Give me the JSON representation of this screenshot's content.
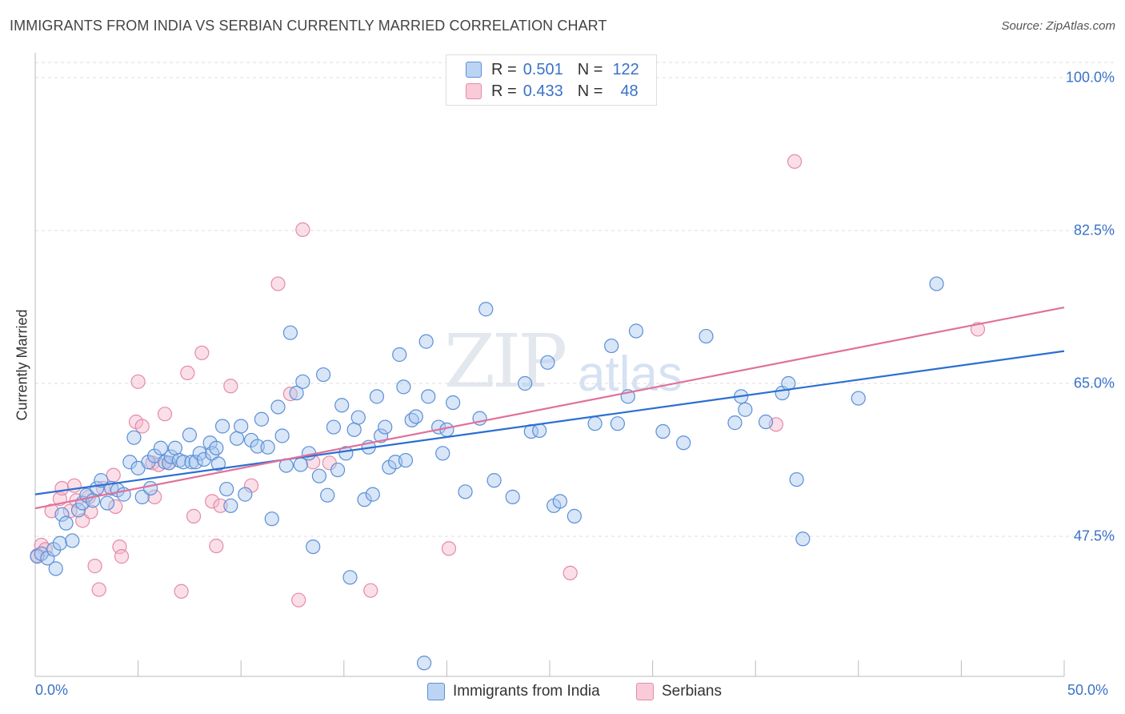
{
  "title": "IMMIGRANTS FROM INDIA VS SERBIAN CURRENTLY MARRIED CORRELATION CHART",
  "source": "Source: ZipAtlas.com",
  "watermark": {
    "zip": "ZIP",
    "atlas": "atlas"
  },
  "legend_top": {
    "rows": [
      {
        "r_label": "R =",
        "r_value": "0.501",
        "n_label": "N =",
        "n_value": "122"
      },
      {
        "r_label": "R =",
        "r_value": "0.433",
        "n_label": "N =",
        "n_value": "48"
      }
    ]
  },
  "legend_bottom": [
    "Immigrants from India",
    "Serbians"
  ],
  "colors": {
    "india_fill": "#a9c8f0",
    "india_stroke": "#5b8fd6",
    "india_line": "#2b6fd1",
    "serb_fill": "#f5b8cb",
    "serb_stroke": "#e58aa8",
    "serb_line": "#e0719a",
    "tick_text": "#3a72c8",
    "grid": "#dcdcdc"
  },
  "chart_data": {
    "type": "scatter",
    "title": "IMMIGRANTS FROM INDIA VS SERBIAN CURRENTLY MARRIED CORRELATION CHART",
    "xlabel": "",
    "ylabel": "Currently Married",
    "xlim": [
      0,
      50
    ],
    "ylim": [
      30,
      101.5
    ],
    "x_tick_labels": [
      "0.0%",
      "50.0%"
    ],
    "y_ticks": [
      47.5,
      65.0,
      82.5,
      100.0
    ],
    "y_tick_labels": [
      "47.5%",
      "65.0%",
      "82.5%",
      "100.0%"
    ],
    "grid": "horizontal dashed",
    "series": [
      {
        "name": "Immigrants from India",
        "R": 0.501,
        "N": 122,
        "trend": {
          "x": [
            0,
            50
          ],
          "y": [
            52.3,
            68.7
          ]
        },
        "points": [
          [
            0.1,
            45.2
          ],
          [
            0.3,
            45.5
          ],
          [
            0.6,
            45.0
          ],
          [
            0.9,
            46.0
          ],
          [
            1.0,
            43.8
          ],
          [
            1.2,
            46.7
          ],
          [
            1.3,
            50.0
          ],
          [
            1.5,
            49.0
          ],
          [
            1.8,
            47.0
          ],
          [
            2.1,
            50.5
          ],
          [
            2.3,
            51.3
          ],
          [
            2.5,
            52.2
          ],
          [
            2.8,
            51.6
          ],
          [
            3.0,
            53.0
          ],
          [
            3.2,
            53.9
          ],
          [
            3.5,
            51.3
          ],
          [
            3.7,
            53.0
          ],
          [
            4.0,
            52.8
          ],
          [
            4.3,
            52.3
          ],
          [
            4.6,
            56.0
          ],
          [
            4.8,
            58.8
          ],
          [
            5.0,
            55.3
          ],
          [
            5.2,
            52.0
          ],
          [
            5.5,
            56.0
          ],
          [
            5.6,
            53.0
          ],
          [
            5.8,
            56.7
          ],
          [
            6.1,
            57.6
          ],
          [
            6.3,
            56.0
          ],
          [
            6.5,
            55.9
          ],
          [
            6.6,
            56.6
          ],
          [
            6.8,
            57.6
          ],
          [
            7.0,
            56.2
          ],
          [
            7.2,
            56.0
          ],
          [
            7.5,
            59.1
          ],
          [
            7.6,
            56.0
          ],
          [
            7.8,
            56.0
          ],
          [
            8.0,
            57.0
          ],
          [
            8.2,
            56.3
          ],
          [
            8.5,
            58.2
          ],
          [
            8.6,
            57.0
          ],
          [
            8.8,
            57.6
          ],
          [
            8.9,
            55.8
          ],
          [
            9.1,
            60.1
          ],
          [
            9.3,
            52.9
          ],
          [
            9.5,
            51.0
          ],
          [
            9.8,
            58.7
          ],
          [
            10.0,
            60.1
          ],
          [
            10.2,
            52.3
          ],
          [
            10.5,
            58.5
          ],
          [
            10.8,
            57.8
          ],
          [
            11.0,
            60.9
          ],
          [
            11.3,
            57.7
          ],
          [
            11.5,
            49.5
          ],
          [
            11.8,
            62.3
          ],
          [
            12.0,
            59.0
          ],
          [
            12.2,
            55.6
          ],
          [
            12.4,
            70.8
          ],
          [
            12.7,
            63.9
          ],
          [
            12.9,
            55.7
          ],
          [
            13.0,
            65.2
          ],
          [
            13.3,
            57.0
          ],
          [
            13.5,
            46.3
          ],
          [
            13.8,
            54.4
          ],
          [
            14.0,
            66.0
          ],
          [
            14.2,
            52.2
          ],
          [
            14.5,
            60.0
          ],
          [
            14.7,
            55.1
          ],
          [
            14.9,
            62.5
          ],
          [
            15.1,
            57.0
          ],
          [
            15.3,
            42.8
          ],
          [
            15.5,
            59.7
          ],
          [
            15.7,
            61.1
          ],
          [
            16.0,
            51.7
          ],
          [
            16.2,
            57.7
          ],
          [
            16.4,
            52.3
          ],
          [
            16.6,
            63.5
          ],
          [
            16.8,
            59.0
          ],
          [
            17.0,
            60.0
          ],
          [
            17.2,
            55.4
          ],
          [
            17.5,
            56.0
          ],
          [
            17.7,
            68.3
          ],
          [
            17.9,
            64.6
          ],
          [
            18.0,
            56.2
          ],
          [
            18.3,
            60.8
          ],
          [
            18.5,
            61.2
          ],
          [
            18.9,
            33.0
          ],
          [
            19.0,
            69.8
          ],
          [
            19.1,
            63.5
          ],
          [
            19.6,
            60.0
          ],
          [
            19.8,
            57.0
          ],
          [
            20.0,
            59.7
          ],
          [
            20.3,
            62.8
          ],
          [
            20.9,
            52.6
          ],
          [
            21.6,
            61.0
          ],
          [
            21.9,
            73.5
          ],
          [
            22.3,
            53.9
          ],
          [
            23.2,
            52.0
          ],
          [
            23.8,
            65.0
          ],
          [
            24.1,
            59.5
          ],
          [
            24.5,
            59.6
          ],
          [
            24.9,
            67.4
          ],
          [
            25.2,
            51.0
          ],
          [
            25.5,
            51.5
          ],
          [
            26.2,
            49.8
          ],
          [
            27.2,
            60.4
          ],
          [
            28.0,
            69.3
          ],
          [
            28.3,
            60.4
          ],
          [
            28.8,
            63.5
          ],
          [
            29.2,
            71.0
          ],
          [
            30.5,
            59.5
          ],
          [
            31.5,
            58.2
          ],
          [
            32.6,
            70.4
          ],
          [
            34.0,
            60.5
          ],
          [
            34.3,
            63.5
          ],
          [
            34.5,
            62.0
          ],
          [
            35.5,
            60.6
          ],
          [
            36.3,
            63.9
          ],
          [
            36.6,
            65.0
          ],
          [
            37.0,
            54.0
          ],
          [
            37.3,
            47.2
          ],
          [
            40.0,
            63.3
          ],
          [
            43.8,
            76.4
          ]
        ]
      },
      {
        "name": "Serbians",
        "R": 0.433,
        "N": 48,
        "trend": {
          "x": [
            0,
            50
          ],
          "y": [
            50.7,
            73.7
          ]
        },
        "points": [
          [
            0.3,
            46.5
          ],
          [
            0.5,
            46.0
          ],
          [
            0.8,
            50.4
          ],
          [
            1.2,
            51.8
          ],
          [
            1.3,
            53.0
          ],
          [
            1.7,
            50.4
          ],
          [
            1.9,
            53.3
          ],
          [
            2.0,
            51.6
          ],
          [
            2.3,
            49.3
          ],
          [
            2.6,
            52.0
          ],
          [
            2.7,
            50.3
          ],
          [
            2.9,
            44.1
          ],
          [
            3.1,
            41.4
          ],
          [
            3.3,
            53.0
          ],
          [
            3.8,
            54.5
          ],
          [
            3.9,
            50.9
          ],
          [
            4.1,
            46.3
          ],
          [
            4.2,
            45.2
          ],
          [
            4.9,
            60.6
          ],
          [
            5.0,
            65.2
          ],
          [
            5.2,
            60.1
          ],
          [
            5.7,
            55.9
          ],
          [
            5.8,
            52.0
          ],
          [
            6.0,
            55.7
          ],
          [
            6.3,
            61.5
          ],
          [
            6.5,
            55.9
          ],
          [
            7.1,
            41.2
          ],
          [
            7.4,
            66.2
          ],
          [
            7.7,
            49.8
          ],
          [
            8.1,
            68.5
          ],
          [
            8.6,
            51.5
          ],
          [
            8.8,
            46.4
          ],
          [
            9.0,
            51.0
          ],
          [
            9.5,
            64.7
          ],
          [
            10.5,
            53.3
          ],
          [
            11.8,
            76.4
          ],
          [
            12.4,
            63.8
          ],
          [
            12.8,
            40.2
          ],
          [
            13.0,
            82.6
          ],
          [
            13.5,
            56.0
          ],
          [
            14.3,
            55.9
          ],
          [
            16.3,
            41.3
          ],
          [
            20.1,
            46.1
          ],
          [
            26.0,
            43.3
          ],
          [
            36.0,
            60.3
          ],
          [
            36.9,
            90.4
          ],
          [
            45.8,
            71.2
          ],
          [
            0.1,
            45.3
          ]
        ]
      }
    ]
  }
}
